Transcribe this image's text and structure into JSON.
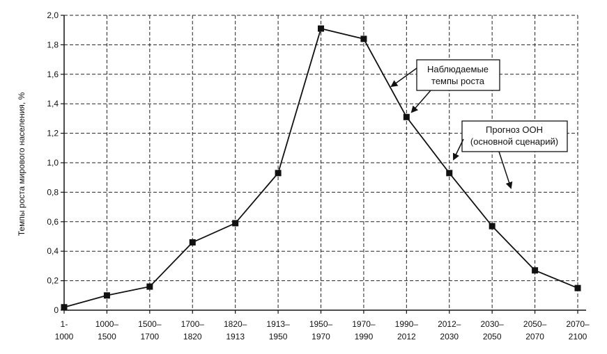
{
  "chart_data": {
    "type": "line",
    "title": "",
    "xlabel": "",
    "ylabel": "Темпы роста мирового населения, %",
    "ylim": [
      0,
      2.0
    ],
    "yticks": [
      "0",
      "0,2",
      "0,4",
      "0,6",
      "0,8",
      "1,0",
      "1,2",
      "1,4",
      "1,6",
      "1,8",
      "2,0"
    ],
    "ytick_values": [
      0,
      0.2,
      0.4,
      0.6,
      0.8,
      1.0,
      1.2,
      1.4,
      1.6,
      1.8,
      2.0
    ],
    "grid": true,
    "categories": [
      [
        "1-",
        "1000"
      ],
      [
        "1000–",
        "1500"
      ],
      [
        "1500–",
        "1700"
      ],
      [
        "1700–",
        "1820"
      ],
      [
        "1820–",
        "1913"
      ],
      [
        "1913–",
        "1950"
      ],
      [
        "1950–",
        "1970"
      ],
      [
        "1970–",
        "1990"
      ],
      [
        "1990–",
        "2012"
      ],
      [
        "2012–",
        "2030"
      ],
      [
        "2030–",
        "2050"
      ],
      [
        "2050–",
        "2070"
      ],
      [
        "2070–",
        "2100"
      ]
    ],
    "series": [
      {
        "values": [
          0.02,
          0.1,
          0.16,
          0.46,
          0.59,
          0.93,
          1.91,
          1.84,
          1.31,
          0.93,
          0.57,
          0.27,
          0.15
        ]
      }
    ],
    "annotations": [
      {
        "id": "observed",
        "lines": [
          "Наблюдаемые",
          "темпы роста"
        ]
      },
      {
        "id": "forecast",
        "lines": [
          "Прогноз ООН",
          "(основной сценарий)"
        ]
      }
    ],
    "colors": {
      "line": "#111111",
      "grid": "#222222",
      "marker": "#111111"
    }
  }
}
